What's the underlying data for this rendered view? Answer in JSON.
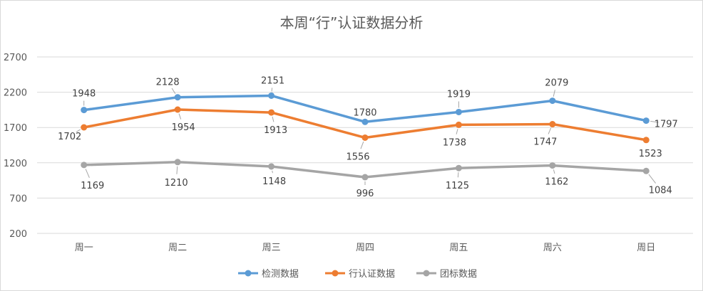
{
  "chart_data": {
    "type": "line",
    "title": "本周“行”认证数据分析",
    "categories": [
      "周一",
      "周二",
      "周三",
      "周四",
      "周五",
      "周六",
      "周日"
    ],
    "ylim": [
      200,
      2700
    ],
    "yticks": [
      200,
      700,
      1200,
      1700,
      2200,
      2700
    ],
    "grid": true,
    "legend_position": "bottom",
    "series": [
      {
        "name": "检测数据",
        "color": "#5b9bd5",
        "values": [
          1948,
          2128,
          2151,
          1780,
          1919,
          2079,
          1797
        ]
      },
      {
        "name": "行认证数据",
        "color": "#ed7d31",
        "values": [
          1702,
          1954,
          1913,
          1556,
          1738,
          1747,
          1523
        ]
      },
      {
        "name": "团标数据",
        "color": "#a5a5a5",
        "values": [
          1169,
          1210,
          1148,
          996,
          1125,
          1162,
          1084
        ]
      }
    ]
  }
}
